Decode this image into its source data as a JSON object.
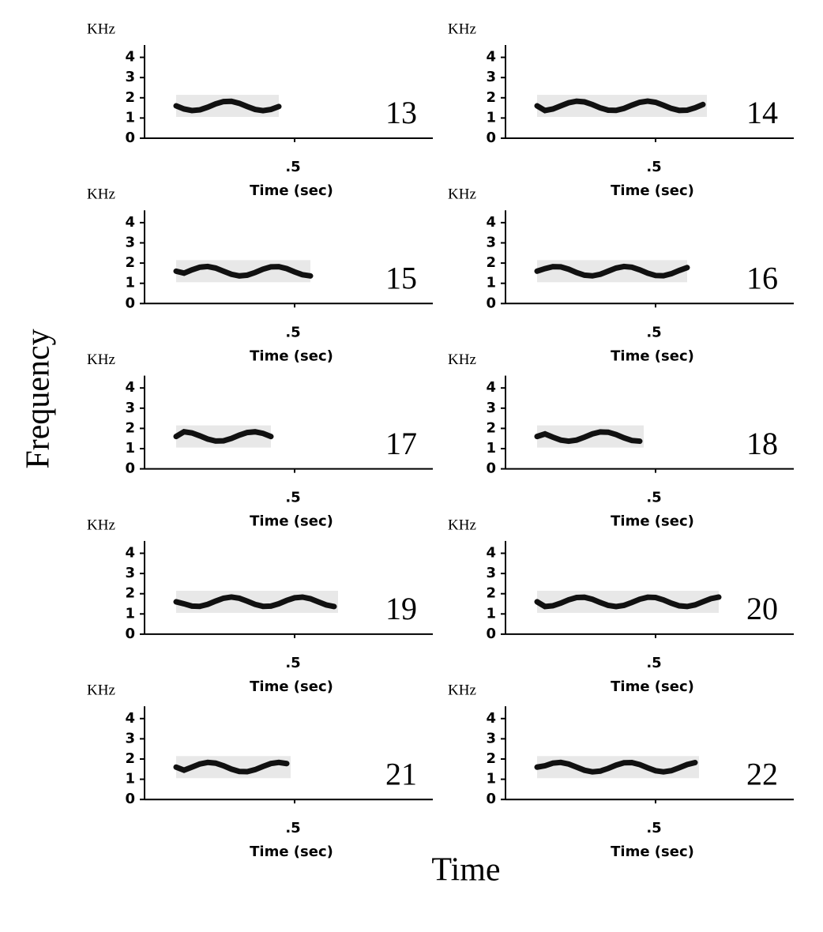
{
  "y_axis_label": "Frequency",
  "x_axis_label": "Time",
  "panels": [
    {
      "number": "13",
      "unit": "KHz",
      "yticks": [
        0,
        1,
        2,
        3,
        4
      ],
      "xtick": ".5",
      "xlabel": "Time (sec)"
    },
    {
      "number": "14",
      "unit": "KHz",
      "yticks": [
        0,
        1,
        2,
        3,
        4
      ],
      "xtick": ".5",
      "xlabel": "Time (sec)"
    },
    {
      "number": "15",
      "unit": "KHz",
      "yticks": [
        0,
        1,
        2,
        3,
        4
      ],
      "xtick": ".5",
      "xlabel": "Time (sec)"
    },
    {
      "number": "16",
      "unit": "KHz",
      "yticks": [
        0,
        1,
        2,
        3,
        4
      ],
      "xtick": ".5",
      "xlabel": "Time (sec)"
    },
    {
      "number": "17",
      "unit": "KHz",
      "yticks": [
        0,
        1,
        2,
        3,
        4
      ],
      "xtick": ".5",
      "xlabel": "Time (sec)"
    },
    {
      "number": "18",
      "unit": "KHz",
      "yticks": [
        0,
        1,
        2,
        3,
        4
      ],
      "xtick": ".5",
      "xlabel": "Time (sec)"
    },
    {
      "number": "19",
      "unit": "KHz",
      "yticks": [
        0,
        1,
        2,
        3,
        4
      ],
      "xtick": ".5",
      "xlabel": "Time (sec)"
    },
    {
      "number": "20",
      "unit": "KHz",
      "yticks": [
        0,
        1,
        2,
        3,
        4
      ],
      "xtick": ".5",
      "xlabel": "Time (sec)"
    },
    {
      "number": "21",
      "unit": "KHz",
      "yticks": [
        0,
        1,
        2,
        3,
        4
      ],
      "xtick": ".5",
      "xlabel": "Time (sec)"
    },
    {
      "number": "22",
      "unit": "KHz",
      "yticks": [
        0,
        1,
        2,
        3,
        4
      ],
      "xtick": ".5",
      "xlabel": "Time (sec)"
    }
  ]
}
